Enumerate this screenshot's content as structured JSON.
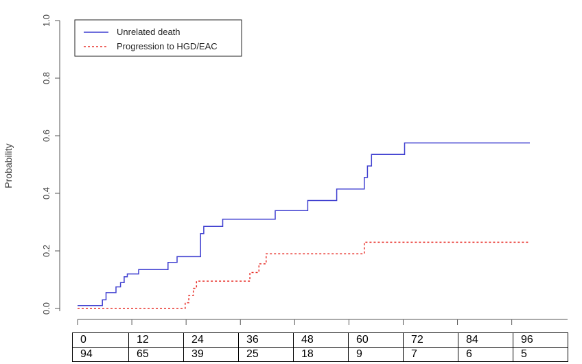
{
  "chart_data": {
    "type": "line",
    "title": "",
    "xlabel": "",
    "ylabel": "Probability",
    "xlim": [
      0,
      100
    ],
    "ylim": [
      0,
      1
    ],
    "yticks": [
      "0.0",
      "0.2",
      "0.4",
      "0.6",
      "0.8",
      "1.0"
    ],
    "xticks": [
      0,
      12,
      24,
      36,
      48,
      60,
      72,
      84,
      96
    ],
    "grid": false,
    "legend_position": "top-left",
    "series": [
      {
        "name": "Unrelated death",
        "color": "#3f3fd0",
        "style": "solid",
        "step_x": [
          0,
          5.5,
          6.3,
          8.5,
          9.5,
          10.3,
          11.0,
          13.5,
          20.0,
          22.0,
          27.2,
          27.9,
          32.1,
          43.7,
          50.9,
          57.3,
          63.4,
          64.1,
          65.0,
          72.3,
          100
        ],
        "step_y": [
          0.01,
          0.03,
          0.055,
          0.075,
          0.09,
          0.11,
          0.12,
          0.135,
          0.16,
          0.18,
          0.26,
          0.285,
          0.31,
          0.34,
          0.375,
          0.415,
          0.455,
          0.495,
          0.535,
          0.575,
          0.575
        ]
      },
      {
        "name": "Progression to HGD/EAC",
        "color": "#e8302a",
        "style": "dashed",
        "step_x": [
          0,
          23.8,
          24.6,
          25.6,
          26.3,
          27.2,
          38.1,
          40.1,
          41.7,
          46.7,
          63.4,
          100
        ],
        "step_y": [
          0.0,
          0.02,
          0.045,
          0.07,
          0.095,
          0.095,
          0.125,
          0.155,
          0.19,
          0.19,
          0.23,
          0.23
        ]
      }
    ],
    "risk_table": {
      "times": [
        "0",
        "12",
        "24",
        "36",
        "48",
        "60",
        "72",
        "84",
        "96"
      ],
      "at_risk": [
        "94",
        "65",
        "39",
        "25",
        "18",
        "9",
        "7",
        "6",
        "5"
      ]
    }
  }
}
